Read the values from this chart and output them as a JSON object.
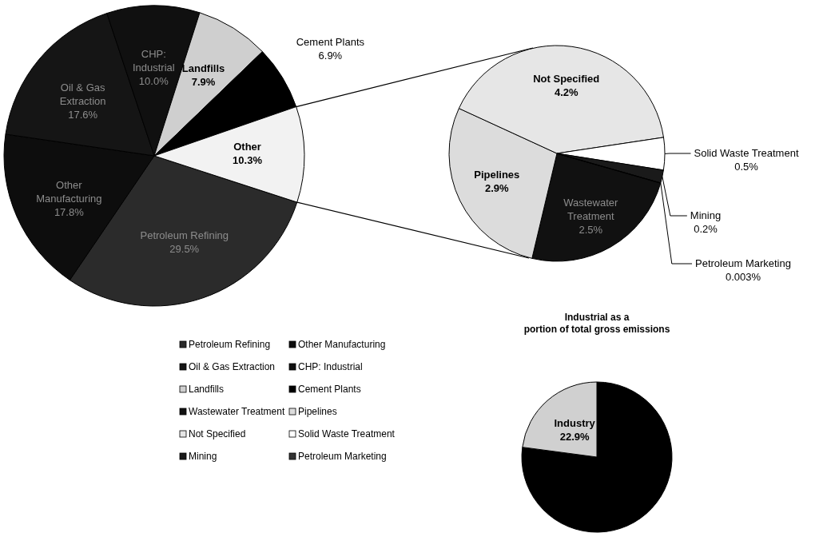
{
  "chart_data": [
    {
      "type": "pie",
      "categories": [
        "Petroleum Refining",
        "Other Manufacturing",
        "Oil & Gas Extraction",
        "CHP: Industrial",
        "Landfills",
        "Cement Plants",
        "Other"
      ],
      "values": [
        29.5,
        17.8,
        17.6,
        10.0,
        7.9,
        6.9,
        10.3
      ],
      "value_labels": [
        "29.5%",
        "17.8%",
        "17.6%",
        "10.0%",
        "7.9%",
        "6.9%",
        "10.3%"
      ],
      "colors": [
        "#2b2b2b",
        "#0d0d0d",
        "#151515",
        "#101010",
        "#cfcfcf",
        "#000000",
        "#f2f2f2"
      ],
      "legend": "bottom right"
    },
    {
      "type": "pie",
      "categories": [
        "Wastewater Treatment",
        "Pipelines",
        "Not Specified",
        "Solid Waste Treatment",
        "Mining",
        "Petroleum Marketing"
      ],
      "values": [
        2.5,
        2.9,
        4.2,
        0.5,
        0.2,
        0.003
      ],
      "value_labels": [
        "2.5%",
        "2.9%",
        "4.2%",
        "0.5%",
        "0.2%",
        "0.003%"
      ],
      "colors": [
        "#111111",
        "#dcdcdc",
        "#e6e6e6",
        "#ffffff",
        "#1a1a1a",
        "#333333"
      ]
    },
    {
      "type": "pie",
      "title": "Industrial as a\nportion of total gross emissions",
      "categories": [
        null,
        "Industry"
      ],
      "values": [
        77.1,
        22.9
      ],
      "value_labels": [
        null,
        "22.9%"
      ],
      "colors": [
        "#000000",
        "#d0d0d0"
      ]
    }
  ]
}
